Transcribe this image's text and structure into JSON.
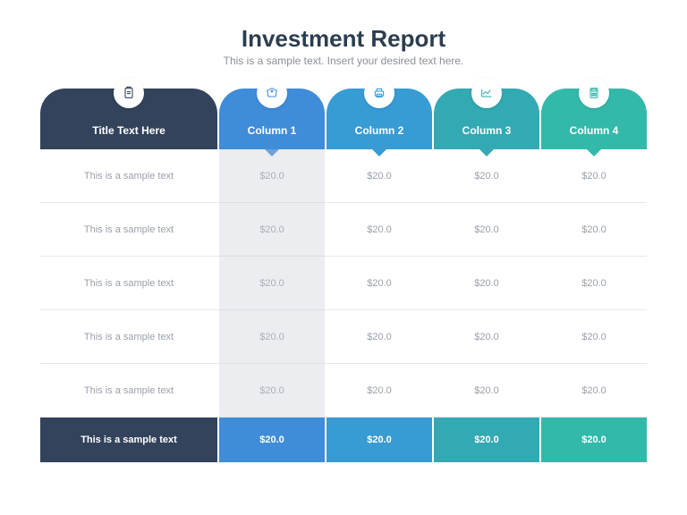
{
  "title": "Investment Report",
  "subtitle": "This is a sample text. Insert your desired text here.",
  "colors": {
    "title_bg": "#33435b",
    "col1": "#3f8cd9",
    "col2": "#379bd4",
    "col3": "#33aab3",
    "col4": "#33b9aa",
    "body_text": "#9aa0aa",
    "border": "#e6e8ec",
    "highlight": "rgba(200,204,212,0.35)"
  },
  "columns": [
    {
      "label": "Title Text Here",
      "icon": "doc-icon",
      "color": "#33435b"
    },
    {
      "label": "Column 1",
      "icon": "tag-icon",
      "color": "#3f8cd9"
    },
    {
      "label": "Column 2",
      "icon": "printer-icon",
      "color": "#379bd4"
    },
    {
      "label": "Column 3",
      "icon": "chart-icon",
      "color": "#33aab3"
    },
    {
      "label": "Column 4",
      "icon": "calc-icon",
      "color": "#33b9aa"
    }
  ],
  "rows": [
    {
      "label": "This is a sample text",
      "values": [
        "$20.0",
        "$20.0",
        "$20.0",
        "$20.0"
      ]
    },
    {
      "label": "This is a sample text",
      "values": [
        "$20.0",
        "$20.0",
        "$20.0",
        "$20.0"
      ]
    },
    {
      "label": "This is a sample text",
      "values": [
        "$20.0",
        "$20.0",
        "$20.0",
        "$20.0"
      ]
    },
    {
      "label": "This is a sample text",
      "values": [
        "$20.0",
        "$20.0",
        "$20.0",
        "$20.0"
      ]
    },
    {
      "label": "This is a sample text",
      "values": [
        "$20.0",
        "$20.0",
        "$20.0",
        "$20.0"
      ]
    }
  ],
  "footer": {
    "label": "This is a sample text",
    "values": [
      "$20.0",
      "$20.0",
      "$20.0",
      "$20.0"
    ]
  },
  "highlighted_column_index": 1
}
